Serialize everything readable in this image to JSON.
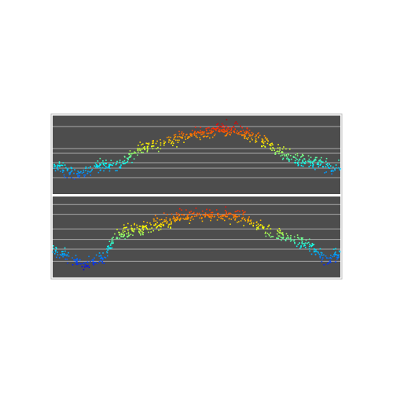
{
  "figure": {
    "background": "#ffffff",
    "frame_color": "#bfbfbf",
    "panel_background": "#4d4d4d",
    "gridline_color": "#a9a9a9",
    "colormap": "jet"
  },
  "chart_data": [
    {
      "type": "scatter",
      "title": "",
      "xlabel": "",
      "ylabel": "",
      "grid": true,
      "xlim": [
        0,
        1
      ],
      "ylim": [
        0,
        1
      ],
      "gridlines_y": [
        0.86,
        0.58,
        0.52,
        0.4,
        0.33,
        0.21
      ],
      "color_by": "y",
      "n_points": 650,
      "seed": 17,
      "noise": 0.04,
      "trend_x": [
        0.0,
        0.08,
        0.15,
        0.24,
        0.3,
        0.4,
        0.5,
        0.58,
        0.66,
        0.74,
        0.82,
        0.9,
        0.95,
        1.0
      ],
      "trend_y": [
        0.36,
        0.25,
        0.36,
        0.38,
        0.58,
        0.68,
        0.76,
        0.82,
        0.8,
        0.66,
        0.48,
        0.4,
        0.36,
        0.32
      ]
    },
    {
      "type": "scatter",
      "title": "",
      "xlabel": "",
      "ylabel": "",
      "grid": true,
      "xlim": [
        0,
        1
      ],
      "ylim": [
        0,
        1
      ],
      "gridlines_y": [
        0.9,
        0.78,
        0.6,
        0.47,
        0.35,
        0.2
      ],
      "color_by": "y",
      "n_points": 650,
      "seed": 29,
      "noise": 0.04,
      "trend_x": [
        0.0,
        0.06,
        0.11,
        0.18,
        0.22,
        0.32,
        0.44,
        0.55,
        0.65,
        0.75,
        0.83,
        0.9,
        0.96,
        1.0
      ],
      "trend_y": [
        0.35,
        0.24,
        0.15,
        0.25,
        0.52,
        0.62,
        0.74,
        0.78,
        0.75,
        0.58,
        0.48,
        0.38,
        0.18,
        0.3
      ]
    }
  ]
}
